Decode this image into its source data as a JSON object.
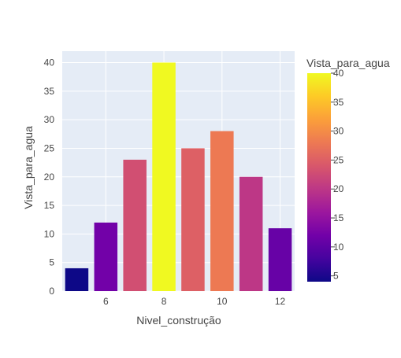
{
  "chart_data": {
    "type": "bar",
    "x": [
      5,
      6,
      7,
      8,
      9,
      10,
      11,
      12
    ],
    "values": [
      4,
      12,
      23,
      40,
      25,
      28,
      20,
      11
    ],
    "xlabel": "Nivel_construção",
    "ylabel": "Vista_para_agua",
    "xlim": [
      4.5,
      12.5
    ],
    "ylim": [
      0,
      42
    ],
    "x_ticks": [
      6,
      8,
      10,
      12
    ],
    "y_ticks": [
      0,
      5,
      10,
      15,
      20,
      25,
      30,
      35,
      40
    ],
    "grid": true,
    "colorbar": {
      "title": "Vista_para_agua",
      "range": [
        4,
        40
      ],
      "ticks": [
        5,
        10,
        15,
        20,
        25,
        30,
        35,
        40
      ],
      "colorscale": [
        "#0d0887",
        "#46039f",
        "#7201a8",
        "#9c179e",
        "#bd3786",
        "#d8576b",
        "#ed7953",
        "#fb9f3a",
        "#fdca26",
        "#f0f921"
      ]
    },
    "colors": {
      "plot_background": "#e5ecf6",
      "grid": "#ffffff",
      "text": "#444444"
    }
  }
}
